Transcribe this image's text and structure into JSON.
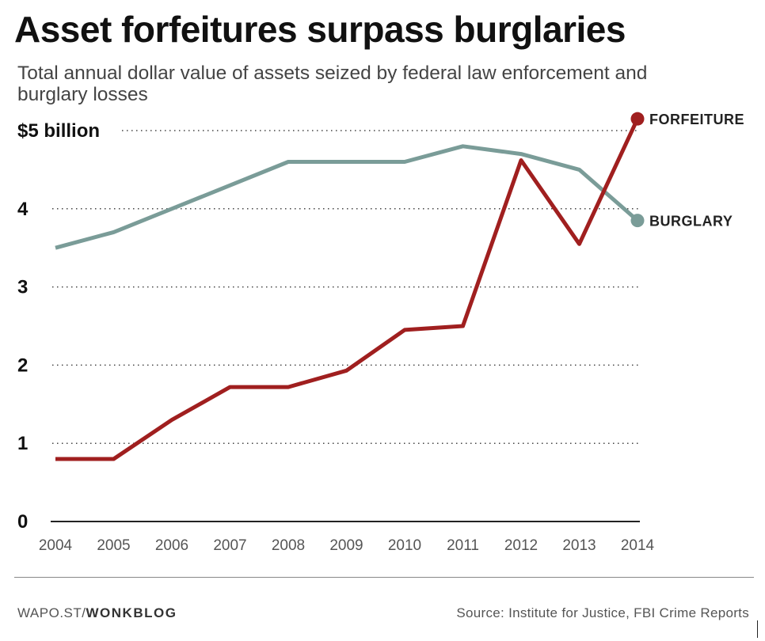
{
  "title": "Asset forfeitures surpass burglaries",
  "subtitle": "Total annual dollar value of assets seized by federal law enforcement and burglary losses",
  "footer": {
    "site_prefix": "WAPO.ST/",
    "site_section": "WONKBLOG",
    "source": "Source: Institute for Justice, FBI Crime Reports"
  },
  "colors": {
    "forfeiture": "#a01f1f",
    "burglary": "#7a9c98",
    "gridline": "#444444",
    "baseline": "#222222",
    "tick_text": "#555555"
  },
  "chart_data": {
    "type": "line",
    "x": [
      2004,
      2005,
      2006,
      2007,
      2008,
      2009,
      2010,
      2011,
      2012,
      2013,
      2014
    ],
    "x_tick_labels": [
      "2004",
      "2005",
      "2006",
      "2007",
      "2008",
      "2009",
      "2010",
      "2011",
      "2012",
      "2013",
      "2014"
    ],
    "y_ticks": [
      0,
      1,
      2,
      3,
      4,
      5
    ],
    "y_tick_labels": [
      "0",
      "1",
      "2",
      "3",
      "4",
      "$5 billion"
    ],
    "ylim": [
      0,
      5
    ],
    "grid": true,
    "series": [
      {
        "name": "FORFEITURE",
        "values": [
          0.8,
          0.8,
          1.3,
          1.72,
          1.72,
          1.93,
          2.45,
          2.5,
          4.62,
          3.55,
          5.15
        ]
      },
      {
        "name": "BURGLARY",
        "values": [
          3.5,
          3.7,
          4.0,
          4.3,
          4.6,
          4.6,
          4.6,
          4.8,
          4.7,
          4.5,
          3.85
        ]
      }
    ]
  }
}
